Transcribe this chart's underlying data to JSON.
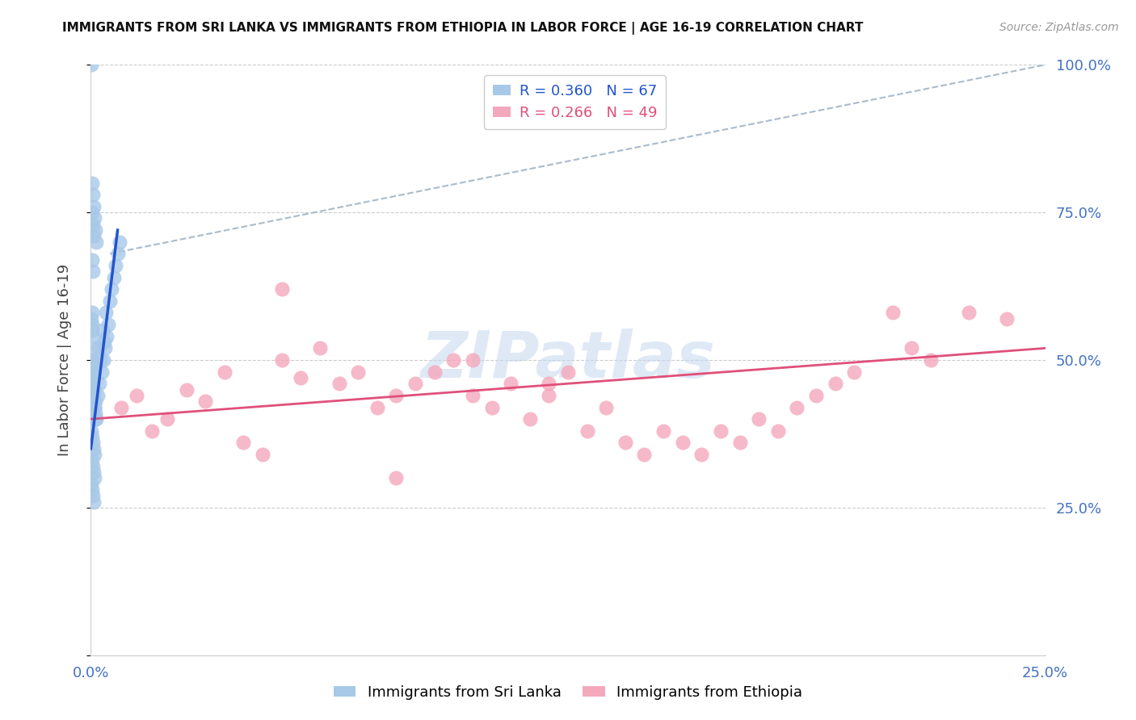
{
  "title": "IMMIGRANTS FROM SRI LANKA VS IMMIGRANTS FROM ETHIOPIA IN LABOR FORCE | AGE 16-19 CORRELATION CHART",
  "source": "Source: ZipAtlas.com",
  "ylabel": "In Labor Force | Age 16-19",
  "xlim": [
    0.0,
    0.25
  ],
  "ylim": [
    0.0,
    1.0
  ],
  "sri_lanka_color": "#a8c8e8",
  "ethiopia_color": "#f4a8bc",
  "sri_lanka_line_color": "#2255cc",
  "ethiopia_line_color": "#e0507a",
  "axis_label_color": "#4472c4",
  "grid_color": "#cccccc",
  "sri_lanka_R": 0.36,
  "sri_lanka_N": 67,
  "ethiopia_R": 0.266,
  "ethiopia_N": 49,
  "watermark": "ZIPatlas",
  "background_color": "#ffffff",
  "sri_lanka_x": [
    0.0002,
    0.0004,
    0.0006,
    0.0008,
    0.001,
    0.0012,
    0.0014,
    0.0003,
    0.0005,
    0.0007,
    0.0009,
    0.0011,
    0.0013,
    0.0015,
    0.0002,
    0.0004,
    0.0006,
    0.0008,
    0.001,
    0.0012,
    0.0003,
    0.0005,
    0.0007,
    0.0009,
    0.0011,
    0.0002,
    0.0004,
    0.0006,
    0.0008,
    0.001,
    0.0003,
    0.0005,
    0.0007,
    0.0009,
    0.0002,
    0.0004,
    0.0006,
    0.0008,
    0.0003,
    0.0005,
    0.0007,
    0.0002,
    0.0004,
    0.0006,
    0.0003,
    0.0005,
    0.0002,
    0.0004,
    0.0003,
    0.002,
    0.0025,
    0.003,
    0.0035,
    0.004,
    0.0045,
    0.005,
    0.0055,
    0.006,
    0.0065,
    0.007,
    0.0075,
    0.0018,
    0.0022,
    0.0028,
    0.0032,
    0.0038,
    0.0042
  ],
  "sri_lanka_y": [
    1.0,
    0.67,
    0.65,
    0.43,
    0.42,
    0.41,
    0.4,
    0.8,
    0.78,
    0.76,
    0.74,
    0.72,
    0.7,
    0.52,
    0.5,
    0.48,
    0.46,
    0.44,
    0.42,
    0.4,
    0.75,
    0.73,
    0.71,
    0.45,
    0.43,
    0.38,
    0.37,
    0.36,
    0.35,
    0.34,
    0.33,
    0.32,
    0.31,
    0.3,
    0.29,
    0.28,
    0.27,
    0.26,
    0.47,
    0.46,
    0.45,
    0.5,
    0.49,
    0.48,
    0.55,
    0.54,
    0.57,
    0.56,
    0.58,
    0.52,
    0.5,
    0.55,
    0.53,
    0.58,
    0.56,
    0.6,
    0.62,
    0.64,
    0.66,
    0.68,
    0.7,
    0.44,
    0.46,
    0.48,
    0.5,
    0.52,
    0.54
  ],
  "ethiopia_x": [
    0.008,
    0.012,
    0.016,
    0.02,
    0.025,
    0.03,
    0.035,
    0.04,
    0.045,
    0.05,
    0.055,
    0.06,
    0.065,
    0.07,
    0.075,
    0.08,
    0.085,
    0.09,
    0.095,
    0.1,
    0.105,
    0.11,
    0.115,
    0.12,
    0.125,
    0.13,
    0.135,
    0.14,
    0.145,
    0.15,
    0.155,
    0.16,
    0.165,
    0.17,
    0.175,
    0.18,
    0.185,
    0.19,
    0.195,
    0.2,
    0.21,
    0.215,
    0.22,
    0.23,
    0.24,
    0.05,
    0.08,
    0.1,
    0.12
  ],
  "ethiopia_y": [
    0.42,
    0.44,
    0.38,
    0.4,
    0.45,
    0.43,
    0.48,
    0.36,
    0.34,
    0.5,
    0.47,
    0.52,
    0.46,
    0.48,
    0.42,
    0.44,
    0.46,
    0.48,
    0.5,
    0.44,
    0.42,
    0.46,
    0.4,
    0.44,
    0.48,
    0.38,
    0.42,
    0.36,
    0.34,
    0.38,
    0.36,
    0.34,
    0.38,
    0.36,
    0.4,
    0.38,
    0.42,
    0.44,
    0.46,
    0.48,
    0.58,
    0.52,
    0.5,
    0.58,
    0.57,
    0.62,
    0.3,
    0.5,
    0.46
  ],
  "sri_lanka_line_x": [
    0.0,
    0.007
  ],
  "sri_lanka_line_y": [
    0.35,
    0.72
  ],
  "ethiopia_line_x": [
    0.0,
    0.25
  ],
  "ethiopia_line_y": [
    0.4,
    0.52
  ],
  "dashed_line_x": [
    0.005,
    0.25
  ],
  "dashed_line_y": [
    0.68,
    1.0
  ]
}
